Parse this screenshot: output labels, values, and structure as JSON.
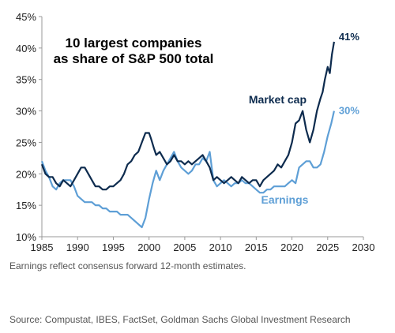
{
  "chart_data": {
    "type": "line",
    "title": [
      "10 largest companies",
      "as share of S&P 500 total"
    ],
    "xlim": [
      1985,
      2030
    ],
    "ylim": [
      10,
      45
    ],
    "x_ticks": [
      "1985",
      "1990",
      "1995",
      "2000",
      "2005",
      "2010",
      "2015",
      "2020",
      "2025",
      "2030"
    ],
    "y_ticks": [
      "10%",
      "15%",
      "20%",
      "25%",
      "30%",
      "35%",
      "40%",
      "45%"
    ],
    "grid": false,
    "series": [
      {
        "name": "Market cap",
        "color": "#0d2b4e",
        "end_label": "41%",
        "x": [
          1985,
          1985.5,
          1986,
          1986.5,
          1987,
          1987.5,
          1988,
          1988.5,
          1989,
          1989.5,
          1990,
          1990.5,
          1991,
          1991.5,
          1992,
          1992.5,
          1993,
          1993.5,
          1994,
          1994.5,
          1995,
          1995.5,
          1996,
          1996.5,
          1997,
          1997.5,
          1998,
          1998.5,
          1999,
          1999.5,
          2000,
          2000.3,
          2000.7,
          2001,
          2001.5,
          2002,
          2002.5,
          2003,
          2003.5,
          2004,
          2004.5,
          2005,
          2005.5,
          2006,
          2006.5,
          2007,
          2007.5,
          2008,
          2008.5,
          2009,
          2009.5,
          2010,
          2010.5,
          2011,
          2011.5,
          2012,
          2012.5,
          2013,
          2013.5,
          2014,
          2014.5,
          2015,
          2015.5,
          2016,
          2016.5,
          2017,
          2017.5,
          2018,
          2018.5,
          2019,
          2019.5,
          2020,
          2020.5,
          2021,
          2021.5,
          2022,
          2022.5,
          2023,
          2023.5,
          2024,
          2024.3,
          2024.6,
          2025,
          2025.3,
          2025.6,
          2025.9
        ],
        "values": [
          21.5,
          20,
          19.5,
          19.5,
          18.5,
          18,
          19,
          18.5,
          18,
          19,
          20,
          21,
          21,
          20,
          19,
          18,
          18,
          17.5,
          17.5,
          18,
          18,
          18.5,
          19,
          20,
          21.5,
          22,
          23,
          23.5,
          25,
          26.5,
          26.5,
          25.5,
          24,
          23,
          23.5,
          22.5,
          21.5,
          22,
          23,
          22,
          22,
          21.5,
          22,
          21.5,
          22,
          22.5,
          23,
          22,
          21,
          19,
          19.5,
          19,
          18.5,
          19,
          19.5,
          19,
          18.5,
          19.5,
          19,
          18.5,
          19,
          19,
          18,
          19,
          19.5,
          20,
          20.5,
          21.5,
          21,
          22,
          23,
          25,
          28,
          28.5,
          30,
          27,
          25,
          27,
          30,
          32,
          33,
          35,
          37,
          36,
          39,
          41
        ]
      },
      {
        "name": "Earnings",
        "color": "#5e9fd6",
        "end_label": "30%",
        "x": [
          1985,
          1985.5,
          1986,
          1986.5,
          1987,
          1987.5,
          1988,
          1988.5,
          1989,
          1989.5,
          1990,
          1990.5,
          1991,
          1991.5,
          1992,
          1992.5,
          1993,
          1993.5,
          1994,
          1994.5,
          1995,
          1995.5,
          1996,
          1996.5,
          1997,
          1997.5,
          1998,
          1998.5,
          1999,
          1999.5,
          2000,
          2000.5,
          2001,
          2001.5,
          2002,
          2002.5,
          2003,
          2003.5,
          2004,
          2004.5,
          2005,
          2005.5,
          2006,
          2006.5,
          2007,
          2007.5,
          2008,
          2008.5,
          2009,
          2009.5,
          2010,
          2010.5,
          2011,
          2011.5,
          2012,
          2012.5,
          2013,
          2013.5,
          2014,
          2014.5,
          2015,
          2015.5,
          2016,
          2016.5,
          2017,
          2017.5,
          2018,
          2018.5,
          2019,
          2019.5,
          2020,
          2020.5,
          2021,
          2021.5,
          2022,
          2022.5,
          2023,
          2023.5,
          2024,
          2024.5,
          2025,
          2025.5,
          2025.9
        ],
        "values": [
          22,
          20.5,
          19.5,
          18,
          17.5,
          18.5,
          19,
          19,
          19,
          18,
          16.5,
          16,
          15.5,
          15.5,
          15.5,
          15,
          15,
          14.5,
          14.5,
          14,
          14,
          14,
          13.5,
          13.5,
          13.5,
          13,
          12.5,
          12,
          11.5,
          13,
          16,
          18.5,
          20.5,
          19,
          20.5,
          21.5,
          22.5,
          23.5,
          22,
          21,
          20.5,
          20,
          20.5,
          21.5,
          21.5,
          22.5,
          22,
          23.5,
          19,
          18,
          18.5,
          19,
          18.5,
          18,
          18.5,
          18.5,
          19,
          18.5,
          18.5,
          18,
          17.5,
          17,
          17,
          17.5,
          17.5,
          18,
          18,
          18,
          18,
          18.5,
          19,
          18.5,
          21,
          21.5,
          22,
          22,
          21,
          21,
          21.5,
          23.5,
          26,
          28,
          30
        ]
      }
    ],
    "annotations": [
      {
        "text": "Market cap",
        "x": 2018,
        "y": 31.2,
        "color": "#0d2b4e"
      },
      {
        "text": "Earnings",
        "x": 2019,
        "y": 15.3,
        "color": "#5e9fd6"
      }
    ]
  },
  "footnote": "Earnings reflect consensus forward 12-month estimates.",
  "source": "Source: Compustat, IBES, FactSet, Goldman Sachs Global Investment Research"
}
